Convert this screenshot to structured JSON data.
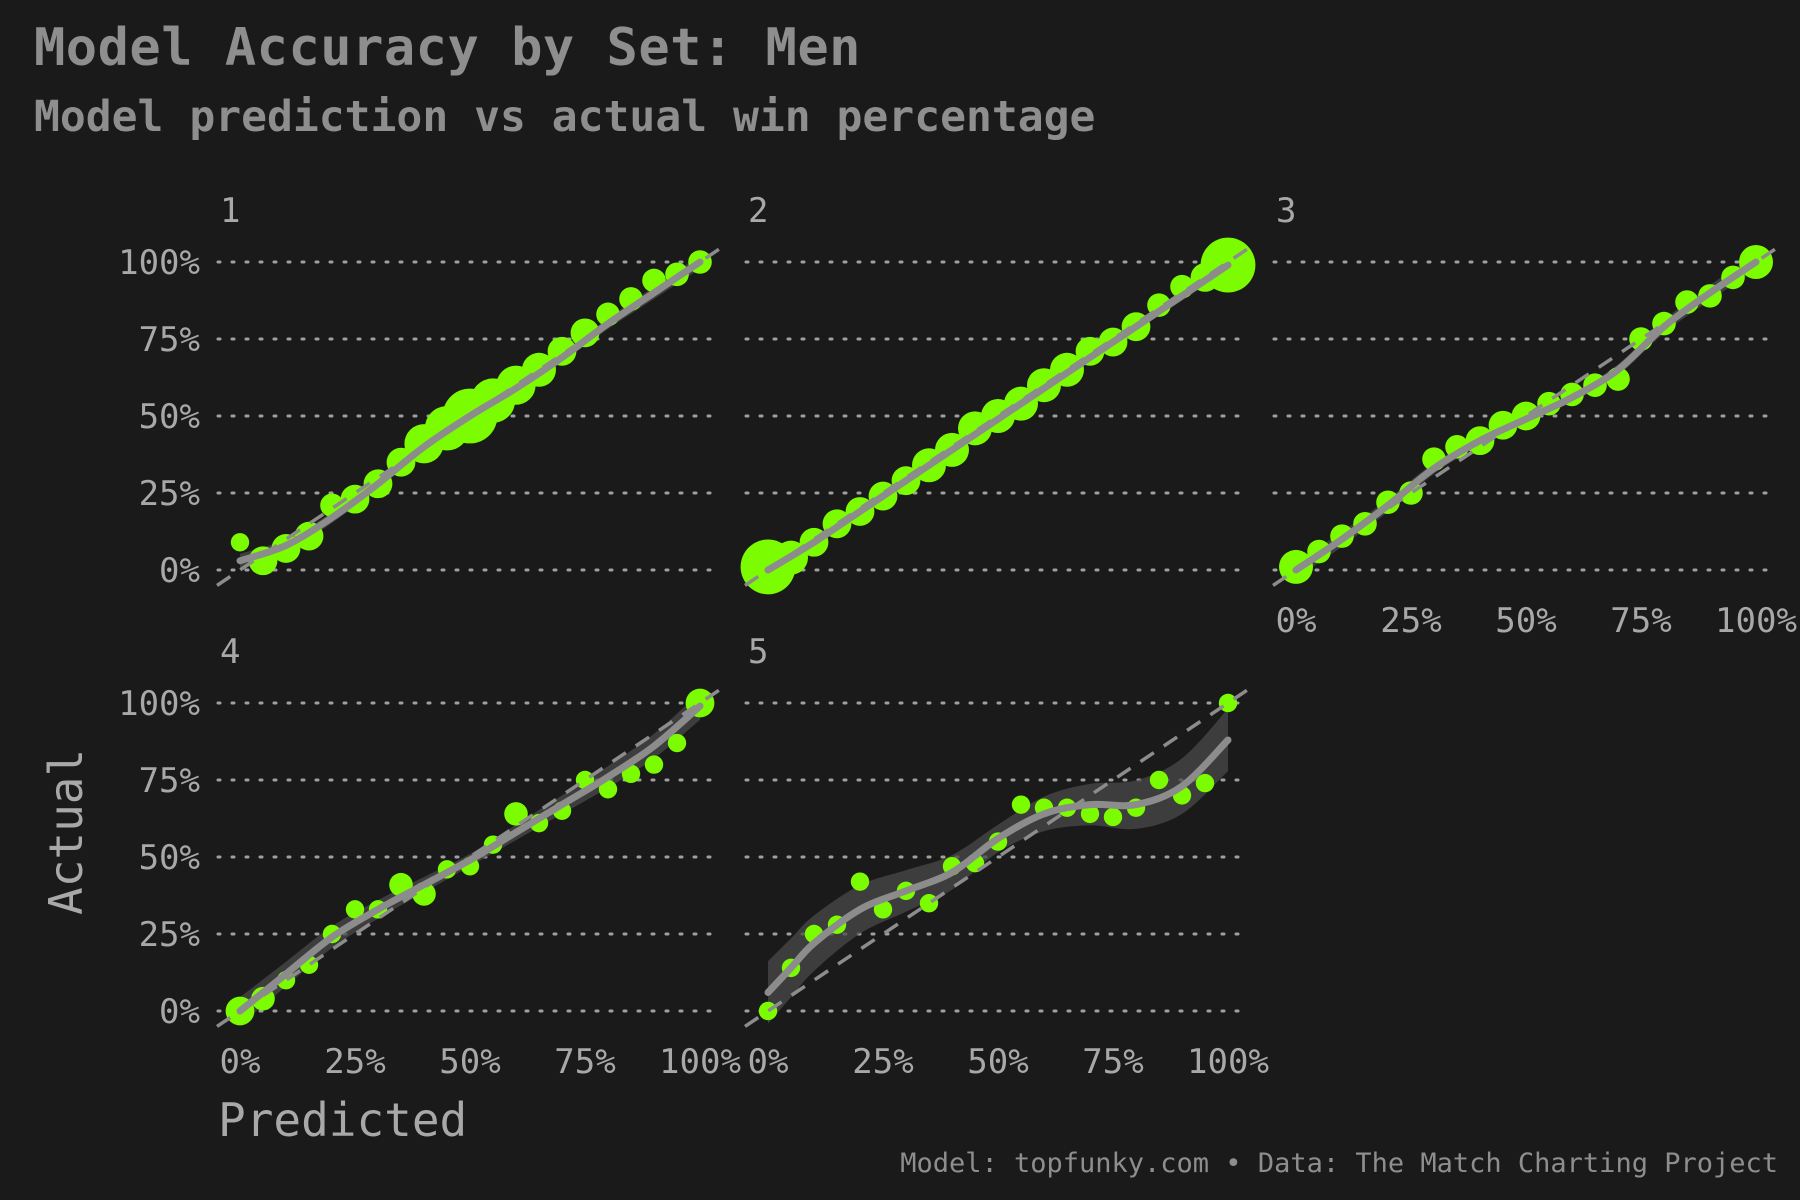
{
  "title": "Model Accuracy by Set: Men",
  "subtitle": "Model prediction vs actual win percentage",
  "caption": "Model: topfunky.com • Data: The Match Charting Project",
  "colors": {
    "background": "#1a1a1a",
    "points": "#7cfc00",
    "smooth_line": "#8c8c8c",
    "confidence_band": "#4a4a4a",
    "reference_line": "#8c8c8c",
    "grid": "#a0a0a0",
    "text": "#a8a8a8"
  },
  "chart_data": {
    "type": "scatter",
    "xlabel": "Predicted",
    "ylabel": "Actual",
    "xlim": [
      0,
      1
    ],
    "ylim": [
      0,
      1
    ],
    "x_ticks": [
      "0%",
      "25%",
      "50%",
      "75%",
      "100%"
    ],
    "y_ticks": [
      "0%",
      "25%",
      "50%",
      "75%",
      "100%"
    ],
    "grid": "horizontal dotted",
    "reference_line": "y = x (dashed)",
    "smooth": "loess with confidence band",
    "panels": [
      {
        "label": "1",
        "points": [
          {
            "x": 0.0,
            "y": 0.09,
            "size": 2
          },
          {
            "x": 0.05,
            "y": 0.03,
            "size": 4
          },
          {
            "x": 0.1,
            "y": 0.07,
            "size": 4
          },
          {
            "x": 0.15,
            "y": 0.11,
            "size": 4
          },
          {
            "x": 0.2,
            "y": 0.21,
            "size": 3
          },
          {
            "x": 0.25,
            "y": 0.23,
            "size": 4
          },
          {
            "x": 0.3,
            "y": 0.28,
            "size": 4
          },
          {
            "x": 0.35,
            "y": 0.35,
            "size": 4
          },
          {
            "x": 0.4,
            "y": 0.41,
            "size": 6
          },
          {
            "x": 0.45,
            "y": 0.46,
            "size": 7
          },
          {
            "x": 0.5,
            "y": 0.5,
            "size": 9
          },
          {
            "x": 0.55,
            "y": 0.55,
            "size": 7
          },
          {
            "x": 0.6,
            "y": 0.6,
            "size": 6
          },
          {
            "x": 0.65,
            "y": 0.65,
            "size": 5
          },
          {
            "x": 0.7,
            "y": 0.71,
            "size": 4
          },
          {
            "x": 0.75,
            "y": 0.77,
            "size": 4
          },
          {
            "x": 0.8,
            "y": 0.83,
            "size": 3
          },
          {
            "x": 0.85,
            "y": 0.88,
            "size": 3
          },
          {
            "x": 0.9,
            "y": 0.94,
            "size": 3
          },
          {
            "x": 0.95,
            "y": 0.96,
            "size": 3
          },
          {
            "x": 1.0,
            "y": 1.0,
            "size": 3
          }
        ],
        "smooth": [
          [
            0,
            0.03
          ],
          [
            0.1,
            0.08
          ],
          [
            0.2,
            0.17
          ],
          [
            0.3,
            0.28
          ],
          [
            0.4,
            0.4
          ],
          [
            0.5,
            0.5
          ],
          [
            0.6,
            0.59
          ],
          [
            0.7,
            0.69
          ],
          [
            0.8,
            0.8
          ],
          [
            0.9,
            0.9
          ],
          [
            1.0,
            1.0
          ]
        ],
        "band": 0.01
      },
      {
        "label": "2",
        "points": [
          {
            "x": 0.0,
            "y": 0.01,
            "size": 9
          },
          {
            "x": 0.05,
            "y": 0.04,
            "size": 5
          },
          {
            "x": 0.1,
            "y": 0.09,
            "size": 4
          },
          {
            "x": 0.15,
            "y": 0.15,
            "size": 4
          },
          {
            "x": 0.2,
            "y": 0.19,
            "size": 4
          },
          {
            "x": 0.25,
            "y": 0.24,
            "size": 4
          },
          {
            "x": 0.3,
            "y": 0.29,
            "size": 4
          },
          {
            "x": 0.35,
            "y": 0.34,
            "size": 5
          },
          {
            "x": 0.4,
            "y": 0.39,
            "size": 5
          },
          {
            "x": 0.45,
            "y": 0.46,
            "size": 5
          },
          {
            "x": 0.5,
            "y": 0.5,
            "size": 5
          },
          {
            "x": 0.55,
            "y": 0.54,
            "size": 5
          },
          {
            "x": 0.6,
            "y": 0.6,
            "size": 5
          },
          {
            "x": 0.65,
            "y": 0.65,
            "size": 5
          },
          {
            "x": 0.7,
            "y": 0.71,
            "size": 4
          },
          {
            "x": 0.75,
            "y": 0.74,
            "size": 4
          },
          {
            "x": 0.8,
            "y": 0.79,
            "size": 4
          },
          {
            "x": 0.85,
            "y": 0.86,
            "size": 3
          },
          {
            "x": 0.9,
            "y": 0.92,
            "size": 3
          },
          {
            "x": 0.95,
            "y": 0.95,
            "size": 4
          },
          {
            "x": 1.0,
            "y": 0.99,
            "size": 9
          }
        ],
        "smooth": [
          [
            0,
            0.0
          ],
          [
            0.1,
            0.09
          ],
          [
            0.2,
            0.19
          ],
          [
            0.3,
            0.29
          ],
          [
            0.4,
            0.39
          ],
          [
            0.5,
            0.49
          ],
          [
            0.6,
            0.59
          ],
          [
            0.7,
            0.69
          ],
          [
            0.8,
            0.79
          ],
          [
            0.9,
            0.89
          ],
          [
            1.0,
            0.99
          ]
        ],
        "band": 0.008
      },
      {
        "label": "3",
        "points": [
          {
            "x": 0.0,
            "y": 0.01,
            "size": 5
          },
          {
            "x": 0.05,
            "y": 0.06,
            "size": 3
          },
          {
            "x": 0.1,
            "y": 0.11,
            "size": 3
          },
          {
            "x": 0.15,
            "y": 0.15,
            "size": 3
          },
          {
            "x": 0.2,
            "y": 0.22,
            "size": 3
          },
          {
            "x": 0.25,
            "y": 0.25,
            "size": 3
          },
          {
            "x": 0.3,
            "y": 0.36,
            "size": 3
          },
          {
            "x": 0.35,
            "y": 0.4,
            "size": 3
          },
          {
            "x": 0.4,
            "y": 0.42,
            "size": 4
          },
          {
            "x": 0.45,
            "y": 0.47,
            "size": 4
          },
          {
            "x": 0.5,
            "y": 0.5,
            "size": 4
          },
          {
            "x": 0.55,
            "y": 0.54,
            "size": 3
          },
          {
            "x": 0.6,
            "y": 0.57,
            "size": 3
          },
          {
            "x": 0.65,
            "y": 0.6,
            "size": 3
          },
          {
            "x": 0.7,
            "y": 0.62,
            "size": 3
          },
          {
            "x": 0.75,
            "y": 0.75,
            "size": 3
          },
          {
            "x": 0.8,
            "y": 0.8,
            "size": 3
          },
          {
            "x": 0.85,
            "y": 0.87,
            "size": 3
          },
          {
            "x": 0.9,
            "y": 0.89,
            "size": 3
          },
          {
            "x": 0.95,
            "y": 0.95,
            "size": 3
          },
          {
            "x": 1.0,
            "y": 1.0,
            "size": 5
          }
        ],
        "smooth": [
          [
            0,
            0.0
          ],
          [
            0.1,
            0.1
          ],
          [
            0.2,
            0.21
          ],
          [
            0.3,
            0.33
          ],
          [
            0.4,
            0.42
          ],
          [
            0.5,
            0.49
          ],
          [
            0.6,
            0.56
          ],
          [
            0.7,
            0.65
          ],
          [
            0.8,
            0.79
          ],
          [
            0.9,
            0.9
          ],
          [
            1.0,
            1.0
          ]
        ],
        "band": 0.012
      },
      {
        "label": "4",
        "points": [
          {
            "x": 0.0,
            "y": 0.0,
            "size": 4
          },
          {
            "x": 0.05,
            "y": 0.04,
            "size": 3
          },
          {
            "x": 0.1,
            "y": 0.1,
            "size": 2
          },
          {
            "x": 0.15,
            "y": 0.15,
            "size": 2
          },
          {
            "x": 0.2,
            "y": 0.25,
            "size": 2
          },
          {
            "x": 0.25,
            "y": 0.33,
            "size": 2
          },
          {
            "x": 0.3,
            "y": 0.33,
            "size": 2
          },
          {
            "x": 0.35,
            "y": 0.41,
            "size": 3
          },
          {
            "x": 0.4,
            "y": 0.38,
            "size": 3
          },
          {
            "x": 0.45,
            "y": 0.46,
            "size": 2
          },
          {
            "x": 0.5,
            "y": 0.47,
            "size": 2
          },
          {
            "x": 0.55,
            "y": 0.54,
            "size": 2
          },
          {
            "x": 0.6,
            "y": 0.64,
            "size": 3
          },
          {
            "x": 0.65,
            "y": 0.61,
            "size": 2
          },
          {
            "x": 0.7,
            "y": 0.65,
            "size": 2
          },
          {
            "x": 0.75,
            "y": 0.75,
            "size": 2
          },
          {
            "x": 0.8,
            "y": 0.72,
            "size": 2
          },
          {
            "x": 0.85,
            "y": 0.77,
            "size": 2
          },
          {
            "x": 0.9,
            "y": 0.8,
            "size": 2
          },
          {
            "x": 0.95,
            "y": 0.87,
            "size": 2
          },
          {
            "x": 1.0,
            "y": 1.0,
            "size": 4
          }
        ],
        "smooth": [
          [
            0,
            0.0
          ],
          [
            0.1,
            0.12
          ],
          [
            0.2,
            0.24
          ],
          [
            0.3,
            0.33
          ],
          [
            0.4,
            0.41
          ],
          [
            0.5,
            0.49
          ],
          [
            0.6,
            0.58
          ],
          [
            0.7,
            0.67
          ],
          [
            0.8,
            0.76
          ],
          [
            0.9,
            0.86
          ],
          [
            1.0,
            0.99
          ]
        ],
        "band": 0.02
      },
      {
        "label": "5",
        "points": [
          {
            "x": 0.0,
            "y": 0.0,
            "size": 2
          },
          {
            "x": 0.05,
            "y": 0.14,
            "size": 2
          },
          {
            "x": 0.1,
            "y": 0.25,
            "size": 2
          },
          {
            "x": 0.15,
            "y": 0.28,
            "size": 2
          },
          {
            "x": 0.2,
            "y": 0.42,
            "size": 2
          },
          {
            "x": 0.25,
            "y": 0.33,
            "size": 2
          },
          {
            "x": 0.3,
            "y": 0.39,
            "size": 2
          },
          {
            "x": 0.35,
            "y": 0.35,
            "size": 2
          },
          {
            "x": 0.4,
            "y": 0.47,
            "size": 2
          },
          {
            "x": 0.45,
            "y": 0.48,
            "size": 2
          },
          {
            "x": 0.5,
            "y": 0.55,
            "size": 2
          },
          {
            "x": 0.55,
            "y": 0.67,
            "size": 2
          },
          {
            "x": 0.6,
            "y": 0.66,
            "size": 2
          },
          {
            "x": 0.65,
            "y": 0.66,
            "size": 2
          },
          {
            "x": 0.7,
            "y": 0.64,
            "size": 2
          },
          {
            "x": 0.75,
            "y": 0.63,
            "size": 2
          },
          {
            "x": 0.8,
            "y": 0.66,
            "size": 2
          },
          {
            "x": 0.85,
            "y": 0.75,
            "size": 2
          },
          {
            "x": 0.9,
            "y": 0.7,
            "size": 2
          },
          {
            "x": 0.95,
            "y": 0.74,
            "size": 2
          },
          {
            "x": 1.0,
            "y": 1.0,
            "size": 2
          }
        ],
        "smooth": [
          [
            0,
            0.06
          ],
          [
            0.05,
            0.14
          ],
          [
            0.1,
            0.22
          ],
          [
            0.2,
            0.33
          ],
          [
            0.3,
            0.39
          ],
          [
            0.4,
            0.45
          ],
          [
            0.5,
            0.56
          ],
          [
            0.6,
            0.64
          ],
          [
            0.7,
            0.67
          ],
          [
            0.8,
            0.67
          ],
          [
            0.9,
            0.73
          ],
          [
            1.0,
            0.88
          ]
        ],
        "band": 0.045
      }
    ]
  }
}
